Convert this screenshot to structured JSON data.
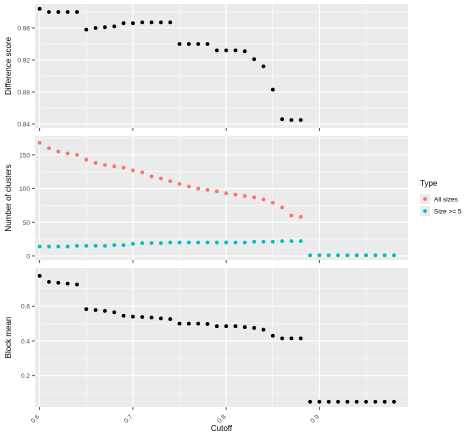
{
  "chart_data": {
    "type": "scatter",
    "xlabel": "Cutoff",
    "x_ticks": [
      {
        "value": 0.6,
        "label": "0.6"
      },
      {
        "value": 0.7,
        "label": "0.7"
      },
      {
        "value": 0.8,
        "label": "0.8"
      },
      {
        "value": 0.9,
        "label": "0.9"
      }
    ],
    "xlim": [
      0.595,
      0.995
    ],
    "grid": true,
    "legend": {
      "title": "Type",
      "position": "right",
      "entries": [
        {
          "label": "All sizes",
          "color": "#F8766D"
        },
        {
          "label": "Size >= 5",
          "color": "#00BFC4"
        }
      ]
    },
    "panels": [
      {
        "ylabel": "Difference score",
        "ylim": [
          0.835,
          0.99
        ],
        "y_ticks": [
          {
            "value": 0.84,
            "label": "0.84"
          },
          {
            "value": 0.88,
            "label": "0.88"
          },
          {
            "value": 0.92,
            "label": "0.92"
          },
          {
            "value": 0.96,
            "label": "0.96"
          }
        ],
        "series": [
          {
            "color": "#000000",
            "x": [
              0.6,
              0.61,
              0.62,
              0.63,
              0.64,
              0.65,
              0.66,
              0.67,
              0.68,
              0.69,
              0.7,
              0.71,
              0.72,
              0.73,
              0.74,
              0.75,
              0.76,
              0.77,
              0.78,
              0.79,
              0.8,
              0.81,
              0.82,
              0.83,
              0.84,
              0.85,
              0.86,
              0.87,
              0.88
            ],
            "y": [
              0.984,
              0.98,
              0.98,
              0.98,
              0.98,
              0.958,
              0.96,
              0.961,
              0.962,
              0.966,
              0.966,
              0.967,
              0.967,
              0.967,
              0.967,
              0.94,
              0.94,
              0.94,
              0.94,
              0.932,
              0.932,
              0.932,
              0.931,
              0.921,
              0.912,
              0.883,
              0.846,
              0.845,
              0.845
            ]
          }
        ]
      },
      {
        "ylabel": "Number of clusters",
        "ylim": [
          -6,
          178
        ],
        "y_ticks": [
          {
            "value": 0,
            "label": "0"
          },
          {
            "value": 50,
            "label": "50"
          },
          {
            "value": 100,
            "label": "100"
          },
          {
            "value": 150,
            "label": "150"
          }
        ],
        "series": [
          {
            "name": "All sizes",
            "color": "#F8766D",
            "x": [
              0.6,
              0.61,
              0.62,
              0.63,
              0.64,
              0.65,
              0.66,
              0.67,
              0.68,
              0.69,
              0.7,
              0.71,
              0.72,
              0.73,
              0.74,
              0.75,
              0.76,
              0.77,
              0.78,
              0.79,
              0.8,
              0.81,
              0.82,
              0.83,
              0.84,
              0.85,
              0.86,
              0.87,
              0.88,
              0.89,
              0.9,
              0.91,
              0.92,
              0.93,
              0.94,
              0.95,
              0.96,
              0.97,
              0.98
            ],
            "y": [
              168,
              160,
              155,
              152,
              150,
              143,
              138,
              135,
              133,
              131,
              127,
              124,
              118,
              115,
              111,
              107,
              103,
              100,
              98,
              96,
              93,
              91,
              89,
              87,
              84,
              79,
              72,
              60,
              58,
              1,
              1,
              1,
              1,
              1,
              1,
              1,
              1,
              1,
              1
            ]
          },
          {
            "name": "Size >= 5",
            "color": "#00BFC4",
            "x": [
              0.6,
              0.61,
              0.62,
              0.63,
              0.64,
              0.65,
              0.66,
              0.67,
              0.68,
              0.69,
              0.7,
              0.71,
              0.72,
              0.73,
              0.74,
              0.75,
              0.76,
              0.77,
              0.78,
              0.79,
              0.8,
              0.81,
              0.82,
              0.83,
              0.84,
              0.85,
              0.86,
              0.87,
              0.88,
              0.89,
              0.9,
              0.91,
              0.92,
              0.93,
              0.94,
              0.95,
              0.96,
              0.97,
              0.98
            ],
            "y": [
              14,
              14,
              14,
              14,
              15,
              15,
              15,
              15,
              16,
              16,
              18,
              19,
              19,
              19,
              20,
              20,
              20,
              20,
              20,
              20,
              20,
              20,
              20,
              21,
              21,
              21,
              22,
              22,
              22,
              1,
              1,
              1,
              1,
              1,
              1,
              1,
              1,
              1,
              1
            ]
          }
        ]
      },
      {
        "ylabel": "Block mean",
        "ylim": [
          0.02,
          0.82
        ],
        "y_ticks": [
          {
            "value": 0.2,
            "label": "0.2"
          },
          {
            "value": 0.4,
            "label": "0.4"
          },
          {
            "value": 0.6,
            "label": "0.6"
          }
        ],
        "series": [
          {
            "color": "#000000",
            "x": [
              0.6,
              0.61,
              0.62,
              0.63,
              0.64,
              0.65,
              0.66,
              0.67,
              0.68,
              0.69,
              0.7,
              0.71,
              0.72,
              0.73,
              0.74,
              0.75,
              0.76,
              0.77,
              0.78,
              0.79,
              0.8,
              0.81,
              0.82,
              0.83,
              0.84,
              0.85,
              0.86,
              0.87,
              0.88,
              0.89,
              0.9,
              0.91,
              0.92,
              0.93,
              0.94,
              0.95,
              0.96,
              0.97,
              0.98
            ],
            "y": [
              0.775,
              0.74,
              0.735,
              0.73,
              0.725,
              0.583,
              0.578,
              0.573,
              0.565,
              0.545,
              0.54,
              0.538,
              0.535,
              0.53,
              0.526,
              0.5,
              0.5,
              0.5,
              0.498,
              0.485,
              0.485,
              0.485,
              0.48,
              0.475,
              0.465,
              0.43,
              0.415,
              0.415,
              0.415,
              0.05,
              0.05,
              0.05,
              0.05,
              0.05,
              0.05,
              0.05,
              0.05,
              0.05,
              0.05
            ]
          }
        ]
      }
    ]
  }
}
